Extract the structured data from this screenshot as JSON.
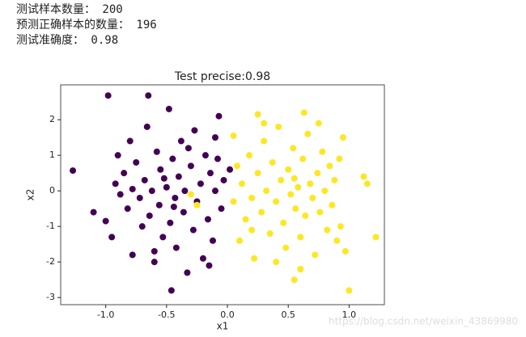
{
  "output_lines": [
    "测试样本数量： 200",
    "预测正确样本的数量： 196",
    "测试准确度： 0.98"
  ],
  "watermark": "https://blog.csdn.net/weixin_43869980",
  "chart_data": {
    "type": "scatter",
    "title": "Test precise:0.98",
    "x_label": "x1",
    "y_label": "x2",
    "xlim": [
      -1.37,
      1.29
    ],
    "ylim": [
      -3.2,
      2.98
    ],
    "xticks": [
      {
        "value": -1,
        "label": "-1.0"
      },
      {
        "value": -0.5,
        "label": "-0.5"
      },
      {
        "value": 0,
        "label": "0.0"
      },
      0.5,
      {
        "value": 1,
        "label": "1.0"
      }
    ],
    "yticks": [
      -3,
      -2,
      -1,
      0,
      1,
      2
    ],
    "series": [
      {
        "color": "#440154",
        "x": [
          -1.27,
          -0.98,
          -0.65,
          -0.46,
          -0.07,
          -0.1,
          -1.1,
          -1.0,
          -0.95,
          -0.92,
          -0.9,
          -0.88,
          -0.85,
          -0.82,
          -0.8,
          -0.78,
          -0.75,
          -0.72,
          -0.7,
          -0.68,
          -0.66,
          -0.64,
          -0.62,
          -0.6,
          -0.58,
          -0.56,
          -0.55,
          -0.53,
          -0.5,
          -0.48,
          -0.47,
          -0.45,
          -0.43,
          -0.42,
          -0.4,
          -0.38,
          -0.36,
          -0.35,
          -0.33,
          -0.3,
          -0.28,
          -0.27,
          -0.25,
          -0.22,
          -0.2,
          -0.18,
          -0.16,
          -0.14,
          -0.12,
          -0.1,
          -0.08,
          -0.05,
          -0.03,
          -0.6,
          -0.78,
          -0.52,
          -0.44,
          -0.32,
          -0.15,
          0.02
        ],
        "values": [
          0.57,
          2.68,
          2.68,
          -2.8,
          2.1,
          1.5,
          -0.6,
          -0.85,
          -1.3,
          0.2,
          1.0,
          -0.1,
          0.5,
          -0.5,
          1.4,
          -1.8,
          0.8,
          -0.2,
          -1.0,
          0.3,
          1.8,
          -0.7,
          0.0,
          -2.0,
          1.1,
          -0.4,
          0.6,
          -1.3,
          0.1,
          2.3,
          -0.9,
          0.9,
          -0.2,
          -1.6,
          0.4,
          1.4,
          -0.6,
          0.0,
          -2.3,
          0.7,
          -1.1,
          1.7,
          -0.3,
          0.2,
          -1.9,
          1.0,
          -0.8,
          0.5,
          -1.4,
          0.0,
          0.9,
          -0.5,
          0.3,
          -1.7,
          0.05,
          0.35,
          -0.45,
          1.2,
          -2.1,
          0.6
        ]
      },
      {
        "color": "#fde725",
        "x": [
          0.25,
          0.63,
          1.22,
          1.0,
          0.55,
          0.95,
          0.05,
          1.12,
          1.15,
          0.93,
          0.97,
          -0.25,
          -0.3,
          0.05,
          0.08,
          0.1,
          0.12,
          0.15,
          0.18,
          0.2,
          0.22,
          0.25,
          0.28,
          0.3,
          0.32,
          0.35,
          0.37,
          0.4,
          0.42,
          0.44,
          0.46,
          0.48,
          0.5,
          0.52,
          0.54,
          0.56,
          0.58,
          0.6,
          0.62,
          0.64,
          0.66,
          0.68,
          0.7,
          0.72,
          0.74,
          0.76,
          0.78,
          0.8,
          0.82,
          0.84,
          0.86,
          0.88,
          0.9,
          0.92,
          0.6,
          0.4,
          0.3,
          0.75,
          0.2,
          0.55
        ],
        "values": [
          2.15,
          2.2,
          -1.3,
          -2.8,
          -2.5,
          1.5,
          1.55,
          0.4,
          0.2,
          -1.0,
          -1.7,
          -0.4,
          -0.1,
          -0.3,
          0.7,
          -1.4,
          0.2,
          -0.8,
          1.0,
          -0.2,
          -1.9,
          0.5,
          -0.6,
          1.4,
          0.0,
          -1.2,
          0.8,
          -0.3,
          1.8,
          0.3,
          -0.9,
          -1.6,
          0.6,
          -0.1,
          1.2,
          -0.5,
          0.1,
          -1.3,
          0.9,
          -0.7,
          1.6,
          0.2,
          -0.2,
          -1.8,
          0.5,
          -0.6,
          1.1,
          0.0,
          -1.1,
          0.7,
          -0.4,
          0.3,
          -1.4,
          0.9,
          -2.2,
          -2.0,
          1.9,
          1.9,
          -1.1,
          0.35
        ]
      }
    ]
  }
}
